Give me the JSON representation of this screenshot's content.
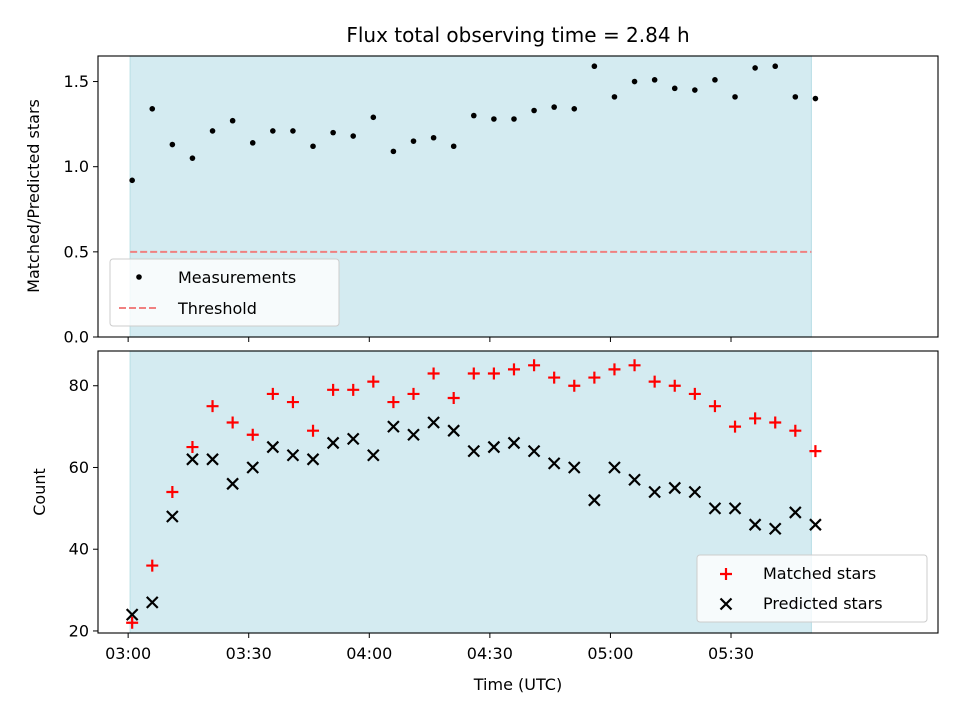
{
  "chart_data": [
    {
      "type": "scatter",
      "title": "Flux total observing time = 2.84 h",
      "xlabel": "",
      "ylabel": "Matched/Predicted stars",
      "ylim": [
        0,
        1.65
      ],
      "xlim_minutes": [
        -7.5,
        201.5
      ],
      "shaded_span_minutes": [
        0.5,
        170
      ],
      "x_ticks_minutes": [
        0,
        30,
        60,
        90,
        120,
        150
      ],
      "y_ticks": [
        0.0,
        0.5,
        1.0,
        1.5
      ],
      "y_tick_labels": [
        "0.0",
        "0.5",
        "1.0",
        "1.5"
      ],
      "legend": {
        "position": "lower-left",
        "entries": [
          "Measurements",
          "Threshold"
        ]
      },
      "colors": {
        "span": "#d4ebf1",
        "span_edge": "#bfe1e8",
        "points": "#000000",
        "threshold": "#f08080"
      },
      "threshold": {
        "name": "Threshold",
        "value": 0.5,
        "x_range_minutes": [
          0.5,
          170
        ]
      },
      "series": [
        {
          "name": "Measurements",
          "x_minutes": [
            1,
            6,
            11,
            16,
            21,
            26,
            31,
            36,
            41,
            46,
            51,
            56,
            61,
            66,
            71,
            76,
            81,
            86,
            91,
            96,
            101,
            106,
            111,
            116,
            121,
            126,
            131,
            136,
            141,
            146,
            151,
            156,
            161,
            166,
            171
          ],
          "values": [
            0.92,
            1.34,
            1.13,
            1.05,
            1.21,
            1.27,
            1.14,
            1.21,
            1.21,
            1.12,
            1.2,
            1.18,
            1.29,
            1.09,
            1.15,
            1.17,
            1.12,
            1.3,
            1.28,
            1.28,
            1.33,
            1.35,
            1.34,
            1.59,
            1.41,
            1.5,
            1.51,
            1.46,
            1.45,
            1.51,
            1.41,
            1.58,
            1.59,
            1.41,
            1.4
          ]
        }
      ]
    },
    {
      "type": "scatter",
      "title": "",
      "xlabel": "Time (UTC)",
      "ylabel": "Count",
      "ylim": [
        19.5,
        88.5
      ],
      "xlim_minutes": [
        -7.5,
        201.5
      ],
      "shaded_span_minutes": [
        0.5,
        170
      ],
      "x_ticks_minutes": [
        0,
        30,
        60,
        90,
        120,
        150
      ],
      "x_tick_labels": [
        "03:00",
        "03:30",
        "04:00",
        "04:30",
        "05:00",
        "05:30"
      ],
      "y_ticks": [
        20,
        40,
        60,
        80
      ],
      "y_tick_labels": [
        "20",
        "40",
        "60",
        "80"
      ],
      "legend": {
        "position": "lower-right",
        "entries": [
          "Matched stars",
          "Predicted stars"
        ]
      },
      "colors": {
        "span": "#d4ebf1",
        "span_edge": "#bfe1e8",
        "matched": "#ff0000",
        "predicted": "#000000"
      },
      "series": [
        {
          "name": "Matched stars",
          "marker": "plus",
          "x_minutes": [
            1,
            6,
            11,
            16,
            21,
            26,
            31,
            36,
            41,
            46,
            51,
            56,
            61,
            66,
            71,
            76,
            81,
            86,
            91,
            96,
            101,
            106,
            111,
            116,
            121,
            126,
            131,
            136,
            141,
            146,
            151,
            156,
            161,
            166,
            171
          ],
          "values": [
            22,
            36,
            54,
            65,
            75,
            71,
            68,
            78,
            76,
            69,
            79,
            79,
            81,
            76,
            78,
            83,
            77,
            83,
            83,
            84,
            85,
            82,
            80,
            82,
            84,
            85,
            81,
            80,
            78,
            75,
            70,
            72,
            71,
            69,
            64
          ]
        },
        {
          "name": "Predicted stars",
          "marker": "x",
          "x_minutes": [
            1,
            6,
            11,
            16,
            21,
            26,
            31,
            36,
            41,
            46,
            51,
            56,
            61,
            66,
            71,
            76,
            81,
            86,
            91,
            96,
            101,
            106,
            111,
            116,
            121,
            126,
            131,
            136,
            141,
            146,
            151,
            156,
            161,
            166,
            171
          ],
          "values": [
            24,
            27,
            48,
            62,
            62,
            56,
            60,
            65,
            63,
            62,
            66,
            67,
            63,
            70,
            68,
            71,
            69,
            64,
            65,
            66,
            64,
            61,
            60,
            52,
            60,
            57,
            54,
            55,
            54,
            50,
            50,
            46,
            45,
            49,
            46
          ]
        }
      ]
    }
  ]
}
